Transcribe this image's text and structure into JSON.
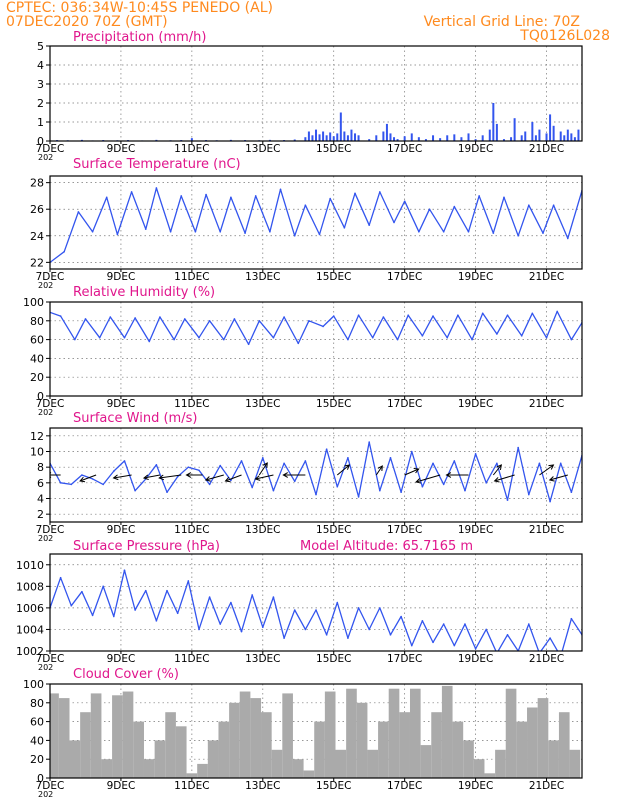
{
  "header": {
    "line1": "CPTEC:   036:34W-10:45S   PENEDO (AL)",
    "line2": "07DEC2020 70Z (GMT)",
    "grid_note": "Vertical Grid Line: 70Z",
    "code": "TQ0126L028"
  },
  "colors": {
    "header": "#ff8a1e",
    "title": "#e0168c",
    "line": "#3355ee",
    "cloud": "#aaaaaa",
    "grid": "#777777"
  },
  "x_axis": {
    "tick_labels": [
      "7DEC",
      "9DEC",
      "11DEC",
      "13DEC",
      "15DEC",
      "17DEC",
      "19DEC",
      "21DEC"
    ],
    "tick_days": [
      7,
      9,
      11,
      13,
      15,
      17,
      19,
      21
    ],
    "start_day": 7,
    "end_day": 22,
    "year_stub": "202"
  },
  "chart_data": [
    {
      "type": "bar",
      "title": "Precipitation (mm/h)",
      "ylim": [
        0,
        5
      ],
      "yticks": [
        "0",
        "1",
        "2",
        "3",
        "4",
        "5"
      ],
      "x": [
        7.2,
        7.5,
        7.9,
        8.2,
        8.5,
        8.9,
        9.2,
        9.6,
        10.0,
        10.4,
        10.7,
        11.0,
        11.4,
        11.7,
        12.1,
        12.5,
        12.9,
        13.2,
        13.6,
        13.9,
        14.2,
        14.3,
        14.4,
        14.5,
        14.6,
        14.7,
        14.8,
        14.9,
        15.0,
        15.1,
        15.2,
        15.3,
        15.4,
        15.5,
        15.6,
        15.7,
        16.0,
        16.2,
        16.4,
        16.5,
        16.6,
        16.7,
        16.8,
        17.0,
        17.2,
        17.4,
        17.6,
        17.8,
        18.0,
        18.2,
        18.4,
        18.6,
        18.8,
        19.0,
        19.2,
        19.4,
        19.5,
        19.6,
        19.8,
        20.0,
        20.1,
        20.3,
        20.4,
        20.6,
        20.7,
        20.8,
        21.0,
        21.1,
        21.2,
        21.4,
        21.5,
        21.6,
        21.7,
        21.8,
        21.9
      ],
      "values": [
        0.05,
        0.04,
        0.06,
        0.03,
        0.05,
        0.04,
        0.05,
        0.03,
        0.06,
        0.04,
        0.05,
        0.15,
        0.05,
        0.04,
        0.06,
        0.05,
        0.04,
        0.06,
        0.05,
        0.08,
        0.2,
        0.5,
        0.3,
        0.6,
        0.35,
        0.5,
        0.3,
        0.45,
        0.25,
        0.4,
        1.5,
        0.5,
        0.3,
        0.6,
        0.4,
        0.3,
        0.1,
        0.3,
        0.5,
        0.9,
        0.4,
        0.2,
        0.1,
        0.25,
        0.4,
        0.2,
        0.1,
        0.3,
        0.15,
        0.3,
        0.35,
        0.2,
        0.4,
        0.1,
        0.3,
        0.6,
        2.0,
        0.9,
        0.1,
        0.2,
        1.2,
        0.3,
        0.5,
        1.0,
        0.3,
        0.6,
        0.4,
        1.4,
        0.8,
        0.5,
        0.3,
        0.6,
        0.4,
        0.2,
        0.6
      ]
    },
    {
      "type": "line",
      "title": "Surface Temperature (nC)",
      "ylim": [
        21.5,
        28.5
      ],
      "yticks": [
        "22",
        "24",
        "26",
        "28"
      ],
      "x": [
        7.0,
        7.4,
        7.8,
        8.2,
        8.6,
        8.9,
        9.3,
        9.7,
        10.0,
        10.4,
        10.7,
        11.1,
        11.4,
        11.8,
        12.1,
        12.5,
        12.8,
        13.2,
        13.5,
        13.9,
        14.2,
        14.6,
        14.9,
        15.3,
        15.6,
        16.0,
        16.3,
        16.7,
        17.0,
        17.4,
        17.7,
        18.1,
        18.4,
        18.8,
        19.1,
        19.5,
        19.8,
        20.2,
        20.5,
        20.9,
        21.2,
        21.6,
        22.0
      ],
      "values": [
        22.0,
        22.8,
        25.8,
        24.3,
        26.9,
        24.1,
        27.3,
        24.5,
        27.6,
        24.3,
        27.0,
        24.3,
        27.1,
        24.3,
        26.9,
        24.2,
        27.0,
        24.3,
        27.5,
        24.0,
        26.3,
        24.1,
        26.8,
        24.6,
        27.2,
        24.8,
        27.3,
        25.0,
        26.6,
        24.3,
        26.0,
        24.3,
        26.2,
        24.3,
        27.0,
        24.2,
        26.9,
        24.0,
        26.3,
        24.2,
        26.3,
        23.8,
        27.4
      ]
    },
    {
      "type": "line",
      "title": "Relative Humidity (%)",
      "ylim": [
        0,
        100
      ],
      "yticks": [
        "0",
        "20",
        "40",
        "60",
        "80",
        "100"
      ],
      "x": [
        7.0,
        7.3,
        7.7,
        8.0,
        8.4,
        8.7,
        9.1,
        9.4,
        9.8,
        10.1,
        10.5,
        10.8,
        11.2,
        11.5,
        11.9,
        12.2,
        12.6,
        12.9,
        13.3,
        13.6,
        14.0,
        14.3,
        14.7,
        15.0,
        15.4,
        15.7,
        16.1,
        16.4,
        16.8,
        17.1,
        17.5,
        17.8,
        18.2,
        18.5,
        18.9,
        19.2,
        19.6,
        19.9,
        20.3,
        20.6,
        21.0,
        21.3,
        21.7,
        22.0
      ],
      "values": [
        89,
        85,
        60,
        82,
        62,
        84,
        62,
        83,
        58,
        84,
        60,
        82,
        62,
        80,
        60,
        82,
        55,
        80,
        62,
        84,
        56,
        80,
        74,
        85,
        60,
        86,
        62,
        84,
        60,
        86,
        64,
        85,
        62,
        86,
        60,
        88,
        66,
        86,
        64,
        88,
        62,
        90,
        60,
        78
      ]
    },
    {
      "type": "line",
      "title": "Surface Wind (m/s)",
      "ylim": [
        1,
        13
      ],
      "yticks": [
        "2",
        "4",
        "6",
        "8",
        "10",
        "12"
      ],
      "x": [
        7.0,
        7.3,
        7.6,
        7.9,
        8.2,
        8.5,
        8.8,
        9.1,
        9.4,
        9.7,
        10.0,
        10.3,
        10.6,
        10.9,
        11.2,
        11.5,
        11.8,
        12.1,
        12.4,
        12.7,
        13.0,
        13.3,
        13.6,
        13.9,
        14.2,
        14.5,
        14.8,
        15.1,
        15.4,
        15.7,
        16.0,
        16.3,
        16.6,
        16.9,
        17.2,
        17.5,
        17.8,
        18.1,
        18.4,
        18.7,
        19.0,
        19.3,
        19.6,
        19.9,
        20.2,
        20.5,
        20.8,
        21.1,
        21.4,
        21.7,
        22.0
      ],
      "values": [
        8.5,
        6.0,
        5.8,
        7.0,
        6.5,
        5.8,
        7.5,
        8.8,
        5.0,
        6.5,
        8.3,
        4.8,
        6.8,
        8.0,
        7.6,
        5.8,
        8.2,
        6.3,
        8.8,
        5.4,
        9.2,
        5.0,
        8.5,
        6.2,
        8.8,
        4.5,
        10.3,
        5.5,
        9.2,
        4.2,
        11.2,
        5.0,
        9.2,
        4.8,
        10.0,
        5.5,
        8.5,
        5.8,
        8.8,
        5.0,
        9.7,
        6.0,
        8.5,
        3.8,
        10.5,
        4.5,
        8.5,
        3.6,
        8.5,
        4.8,
        9.5
      ],
      "arrows": [
        {
          "day": 7.3,
          "dx": -14,
          "dy": 0
        },
        {
          "day": 8.3,
          "dx": -16,
          "dy": 6
        },
        {
          "day": 9.3,
          "dx": -18,
          "dy": 3
        },
        {
          "day": 10.1,
          "dx": -16,
          "dy": 3
        },
        {
          "day": 10.7,
          "dx": -22,
          "dy": 3
        },
        {
          "day": 11.3,
          "dx": -16,
          "dy": 0
        },
        {
          "day": 11.9,
          "dx": -18,
          "dy": 5
        },
        {
          "day": 12.4,
          "dx": -16,
          "dy": 6
        },
        {
          "day": 12.9,
          "dx": 8,
          "dy": -12
        },
        {
          "day": 13.3,
          "dx": -18,
          "dy": 4
        },
        {
          "day": 14.2,
          "dx": -22,
          "dy": 0
        },
        {
          "day": 15.1,
          "dx": 12,
          "dy": -10
        },
        {
          "day": 16.2,
          "dx": 6,
          "dy": -9
        },
        {
          "day": 17.0,
          "dx": 14,
          "dy": -6
        },
        {
          "day": 18.0,
          "dx": -24,
          "dy": 7
        },
        {
          "day": 18.8,
          "dx": -22,
          "dy": 0
        },
        {
          "day": 19.5,
          "dx": 8,
          "dy": -10
        },
        {
          "day": 20.1,
          "dx": -20,
          "dy": 6
        },
        {
          "day": 20.8,
          "dx": 14,
          "dy": -10
        },
        {
          "day": 21.6,
          "dx": -18,
          "dy": 5
        }
      ]
    },
    {
      "type": "line",
      "title": "Surface Pressure (hPa)",
      "subtitle": "Model Altitude: 65.7165  m",
      "ylim": [
        1002,
        1011
      ],
      "yticks": [
        "1002",
        "1004",
        "1006",
        "1008",
        "1010"
      ],
      "x": [
        7.0,
        7.3,
        7.6,
        7.9,
        8.2,
        8.5,
        8.8,
        9.1,
        9.4,
        9.7,
        10.0,
        10.3,
        10.6,
        10.9,
        11.2,
        11.5,
        11.8,
        12.1,
        12.4,
        12.7,
        13.0,
        13.3,
        13.6,
        13.9,
        14.2,
        14.5,
        14.8,
        15.1,
        15.4,
        15.7,
        16.0,
        16.3,
        16.6,
        16.9,
        17.2,
        17.5,
        17.8,
        18.1,
        18.4,
        18.7,
        19.0,
        19.3,
        19.6,
        19.9,
        20.2,
        20.5,
        20.8,
        21.1,
        21.4,
        21.7,
        22.0
      ],
      "values": [
        1006.0,
        1008.8,
        1006.2,
        1007.5,
        1005.3,
        1008.0,
        1005.2,
        1009.5,
        1005.8,
        1007.6,
        1004.8,
        1007.6,
        1005.5,
        1008.5,
        1004.0,
        1007.0,
        1004.5,
        1006.5,
        1003.8,
        1007.2,
        1004.2,
        1007.0,
        1003.2,
        1005.8,
        1004.0,
        1005.8,
        1003.5,
        1006.5,
        1003.2,
        1006.0,
        1004.0,
        1006.0,
        1003.5,
        1005.2,
        1002.5,
        1004.8,
        1002.8,
        1004.5,
        1002.5,
        1004.5,
        1002.2,
        1004.0,
        1001.8,
        1003.5,
        1002.0,
        1004.5,
        1001.8,
        1003.2,
        1001.5,
        1005.0,
        1003.5
      ]
    },
    {
      "type": "bar",
      "title": "Cloud Cover (%)",
      "ylim": [
        0,
        100
      ],
      "yticks": [
        "0",
        "20",
        "40",
        "60",
        "80",
        "100"
      ],
      "x": [
        7.1,
        7.4,
        7.7,
        8.0,
        8.3,
        8.6,
        8.9,
        9.2,
        9.5,
        9.8,
        10.1,
        10.4,
        10.7,
        11.0,
        11.3,
        11.6,
        11.9,
        12.2,
        12.5,
        12.8,
        13.1,
        13.4,
        13.7,
        14.0,
        14.3,
        14.6,
        14.9,
        15.2,
        15.5,
        15.8,
        16.1,
        16.4,
        16.7,
        17.0,
        17.3,
        17.6,
        17.9,
        18.2,
        18.5,
        18.8,
        19.1,
        19.4,
        19.7,
        20.0,
        20.3,
        20.6,
        20.9,
        21.2,
        21.5,
        21.8
      ],
      "values": [
        90,
        85,
        40,
        70,
        90,
        20,
        88,
        92,
        60,
        20,
        40,
        70,
        55,
        5,
        15,
        40,
        60,
        80,
        92,
        85,
        70,
        30,
        90,
        20,
        8,
        60,
        92,
        30,
        95,
        80,
        30,
        60,
        95,
        70,
        95,
        35,
        70,
        98,
        60,
        40,
        20,
        5,
        30,
        95,
        60,
        75,
        85,
        40,
        70,
        30
      ]
    }
  ]
}
